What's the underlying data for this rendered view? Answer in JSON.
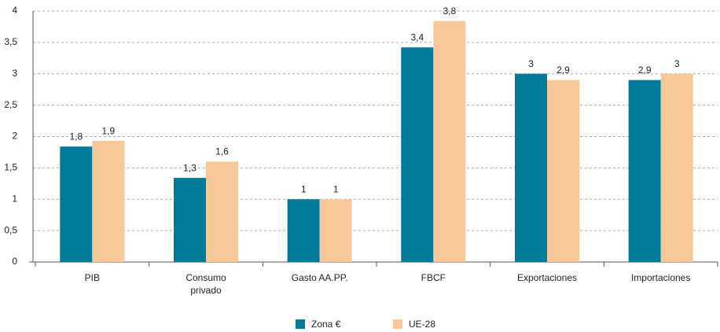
{
  "chart_data": {
    "type": "bar",
    "categories": [
      "PIB",
      "Consumo\nprivado",
      "Gasto AA.PP.",
      "FBCF",
      "Exportaciones",
      "Importaciones"
    ],
    "series": [
      {
        "name": "Zona €",
        "color": "#007a9a",
        "values": [
          1.84,
          1.34,
          1,
          3.42,
          3,
          2.9
        ],
        "value_labels": [
          "1,8",
          "1,3",
          "1",
          "3,4",
          "3",
          "2,9"
        ]
      },
      {
        "name": "UE-28",
        "color": "#f9c898",
        "values": [
          1.93,
          1.6,
          1,
          3.84,
          2.9,
          3
        ],
        "value_labels": [
          "1,9",
          "1,6",
          "1",
          "3,8",
          "2,9",
          "3"
        ]
      }
    ],
    "ylim": [
      0,
      4
    ],
    "yticks": [
      0,
      {
        "value": 0.5,
        "label": "0,5"
      },
      1,
      {
        "value": 1.5,
        "label": "1,5"
      },
      2,
      {
        "value": 2.5,
        "label": "2,5"
      },
      3,
      {
        "value": 3.5,
        "label": "3,5"
      },
      4
    ],
    "grid": true,
    "legend": "bottom"
  }
}
